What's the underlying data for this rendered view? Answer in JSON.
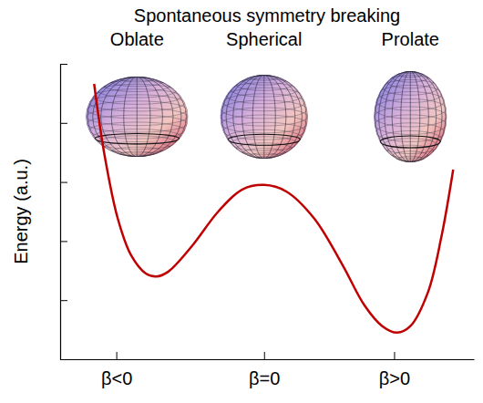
{
  "chart_data": {
    "type": "line",
    "title": "Spontaneous symmetry breaking",
    "annotations": [
      {
        "text": "Oblate",
        "x": -0.86
      },
      {
        "text": "Spherical",
        "x": 0
      },
      {
        "text": "Prolate",
        "x": 0.99
      }
    ],
    "y_label": "Energy (a.u.)",
    "x": [
      -1.15,
      -1.08,
      -0.99,
      -0.9,
      -0.8,
      -0.73,
      -0.65,
      -0.49,
      -0.31,
      -0.15,
      0,
      0.15,
      0.34,
      0.53,
      0.68,
      0.8,
      0.9,
      0.99,
      1.11,
      1.2,
      1.28
    ],
    "values": [
      4.66,
      3.46,
      2.38,
      1.76,
      1.45,
      1.4,
      1.48,
      1.91,
      2.5,
      2.87,
      2.95,
      2.84,
      2.38,
      1.6,
      0.91,
      0.56,
      0.45,
      0.56,
      1.14,
      2.07,
      3.21
    ],
    "color": "#c00000",
    "xlim": [
      -1.38,
      1.42
    ],
    "xticks": [
      {
        "value": -1,
        "label": "β<0"
      },
      {
        "value": 0,
        "label": "β=0"
      },
      {
        "value": 0.88,
        "label": "β>0"
      }
    ],
    "ylim": [
      0,
      5
    ],
    "yticks": [
      0,
      1,
      2,
      3,
      4,
      5
    ],
    "tick_labels": "x"
  }
}
